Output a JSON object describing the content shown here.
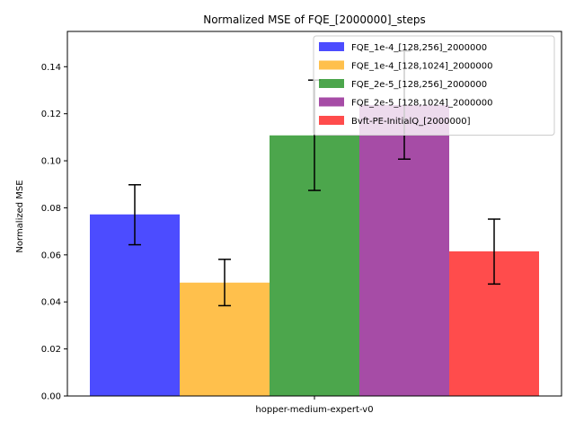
{
  "chart_data": {
    "type": "bar",
    "title": "Normalized MSE of FQE_[2000000]_steps",
    "xlabel": "",
    "ylabel": "Normalized MSE",
    "categories": [
      "hopper-medium-expert-v0"
    ],
    "ylim": [
      0,
      0.155
    ],
    "yticks": [
      0.0,
      0.02,
      0.04,
      0.06,
      0.08,
      0.1,
      0.12,
      0.14
    ],
    "ytick_labels": [
      "0.00",
      "0.02",
      "0.04",
      "0.06",
      "0.08",
      "0.10",
      "0.12",
      "0.14"
    ],
    "grid": false,
    "legend_position": "top-right",
    "series": [
      {
        "name": "FQE_1e-4_[128,256]_2000000",
        "values": [
          0.0772
        ],
        "err_low": [
          0.0643
        ],
        "err_high": [
          0.0898
        ],
        "color": "#0000ff"
      },
      {
        "name": "FQE_1e-4_[128,1024]_2000000",
        "values": [
          0.0482
        ],
        "err_low": [
          0.0384
        ],
        "err_high": [
          0.0581
        ],
        "color": "#ffa500"
      },
      {
        "name": "FQE_2e-5_[128,256]_2000000",
        "values": [
          0.1108
        ],
        "err_low": [
          0.0874
        ],
        "err_high": [
          0.1343
        ],
        "color": "#008000"
      },
      {
        "name": "FQE_2e-5_[128,1024]_2000000",
        "values": [
          0.1237
        ],
        "err_low": [
          0.1007
        ],
        "err_high": [
          0.1467
        ],
        "color": "#800080"
      },
      {
        "name": "Bvft-PE-InitialQ_[2000000]",
        "values": [
          0.0615
        ],
        "err_low": [
          0.0476
        ],
        "err_high": [
          0.0752
        ],
        "color": "#ff0000"
      }
    ]
  }
}
